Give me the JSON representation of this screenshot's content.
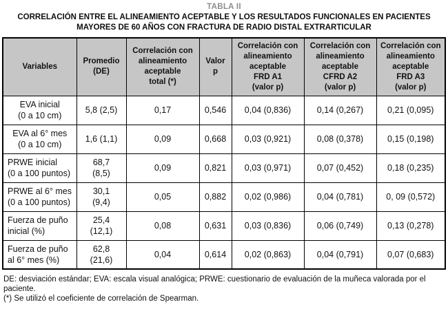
{
  "title": "TABLA II",
  "subtitle_line1": "CORRELACIÓN ENTRE EL ALINEAMIENTO ACEPTABLE Y LOS RESULTADOS FUNCIONALES EN PACIENTES",
  "subtitle_line2": "MAYORES DE 60 AÑOS CON FRACTURA DE RADIO DISTAL EXTRARTICULAR",
  "colors": {
    "header_background": "#c6c6c6",
    "border": "#000000",
    "title_gray": "#8c8c8c"
  },
  "chart_data": {
    "type": "table",
    "title": "CORRELACIÓN ENTRE EL ALINEAMIENTO ACEPTABLE Y LOS RESULTADOS FUNCIONALES EN PACIENTES MAYORES DE 60 AÑOS CON FRACTURA DE RADIO DISTAL EXTRARTICULAR",
    "headers": [
      "Variables",
      "Promedio\n(DE)",
      "Correlación con\nalineamiento\naceptable\ntotal (*)",
      "Valor\np",
      "Correlación con\nalineamiento\naceptable\nFRD A1\n(valor p)",
      "Correlación con\nalineamiento\naceptable\nCFRD A2\n(valor p)",
      "Correlación con\nalineamiento\naceptable\nFRD A3\n(valor p)"
    ],
    "rows": [
      {
        "align": "center",
        "cells": [
          "EVA inicial\n(0 a 10 cm)",
          "5,8 (2,5)",
          "0,17",
          "0,546",
          "0,04 (0,836)",
          "0,14 (0,267)",
          "0,21 (0,095)"
        ]
      },
      {
        "align": "center",
        "cells": [
          "EVA al 6° mes\n(0 a 10 cm)",
          "1,6 (1,1)",
          "0,09",
          "0,668",
          "0,03 (0,921)",
          "0,08 (0,378)",
          "0,15 (0,198)"
        ]
      },
      {
        "align": "left",
        "cells": [
          "PRWE inicial\n(0 a 100 puntos)",
          "68,7\n(8,5)",
          "0,09",
          "0,821",
          "0,03 (0,971)",
          "0,07 (0,452)",
          "0,18 (0,235)"
        ]
      },
      {
        "align": "left",
        "cells": [
          "PRWE al 6° mes\n(0 a 100 puntos)",
          "30,1\n(9,4)",
          "0,05",
          "0,882",
          "0,02 (0,986)",
          "0,04 (0,781)",
          "0, 09 (0,572)"
        ]
      },
      {
        "align": "left",
        "cells": [
          "Fuerza de puño\ninicial (%)",
          "25,4\n(12,1)",
          "0,08",
          "0,631",
          "0,03 (0,836)",
          "0,06 (0,749)",
          "0,13 (0,278)"
        ]
      },
      {
        "align": "left",
        "cells": [
          "Fuerza de puño\nal 6° mes (%)",
          "62,8\n(21,6)",
          "0,04",
          "0,614",
          "0,02 (0,863)",
          "0,04 (0,791)",
          "0,07 (0,683)"
        ]
      }
    ]
  },
  "footnotes": [
    "DE: desviación estándar; EVA: escala visual analógica; PRWE: cuestionario de evaluación de la muñeca valorada por el paciente.",
    "(*) Se utilizó el coeficiente de correlación de Spearman."
  ]
}
